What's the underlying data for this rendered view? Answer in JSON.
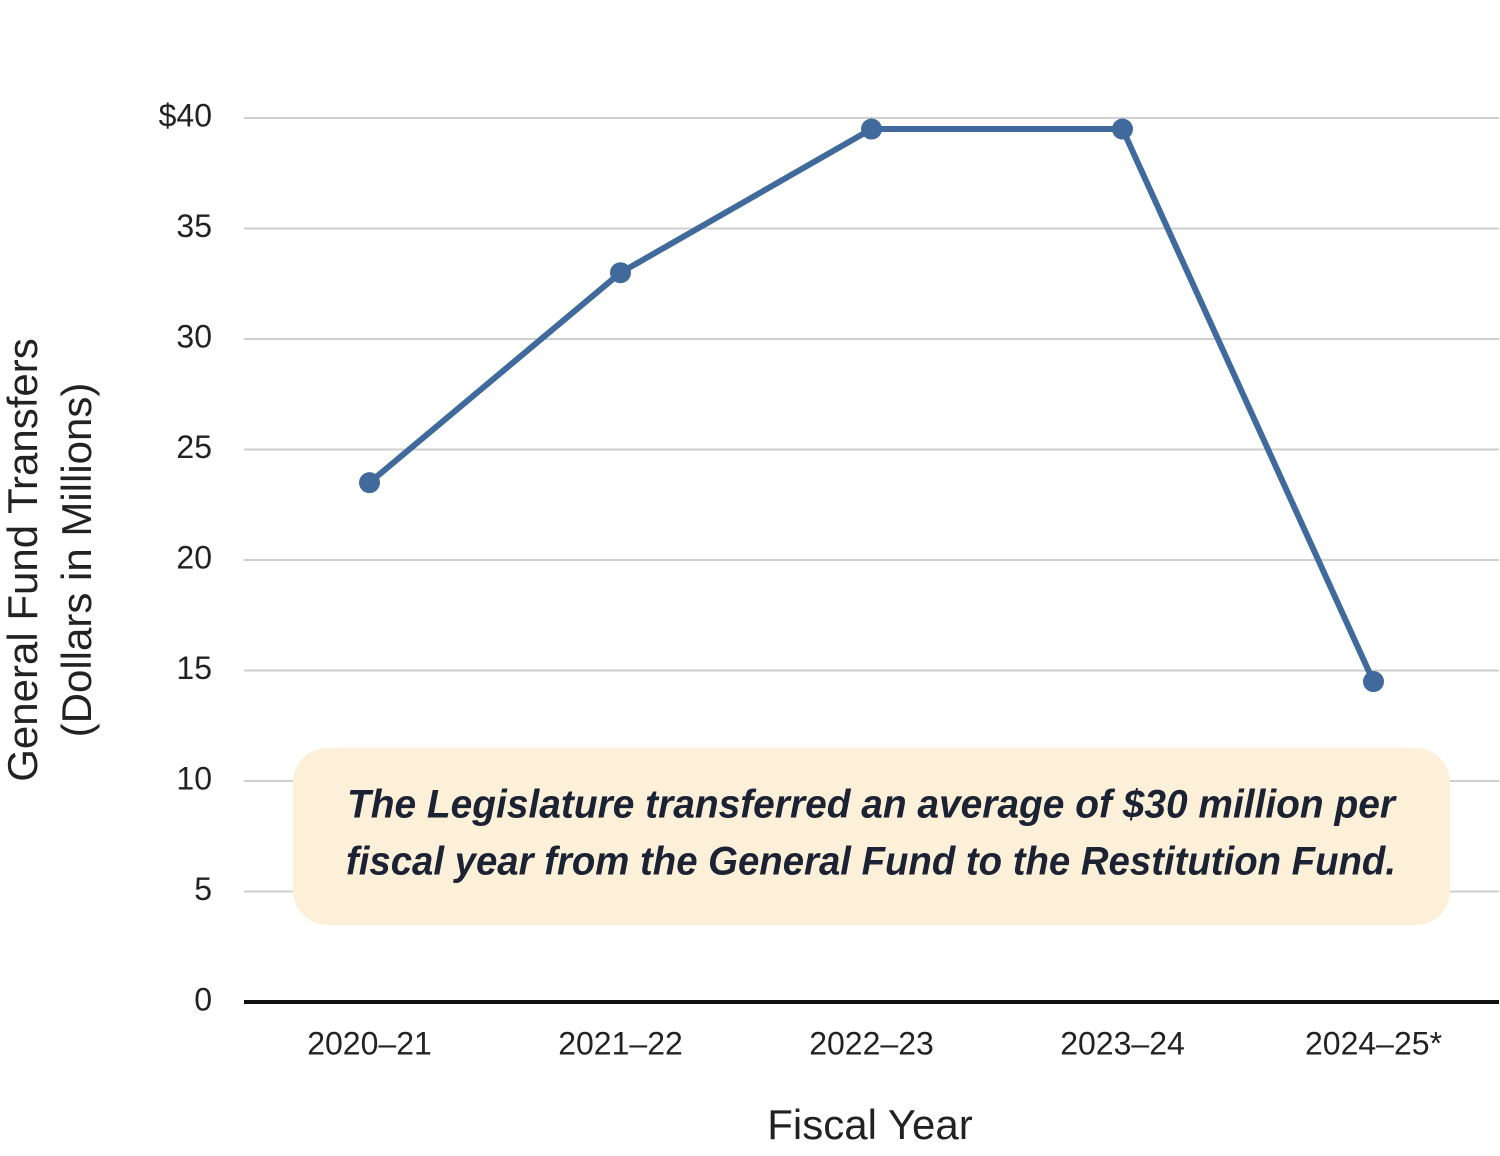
{
  "chart_data": {
    "type": "line",
    "ylabel": [
      "General Fund Transfers",
      "(Dollars in Millions)"
    ],
    "xlabel": "Fiscal Year",
    "categories": [
      "2020–21",
      "2021–22",
      "2022–23",
      "2023–24",
      "2024–25*"
    ],
    "series": [
      {
        "color": "#3f6a9b",
        "values": [
          23.5,
          33,
          39.5,
          39.5,
          14.5
        ]
      }
    ],
    "ylim": [
      0,
      40
    ],
    "yticks": [
      0,
      5,
      10,
      15,
      20,
      25,
      30,
      35,
      {
        "value": 40,
        "label": "$40"
      }
    ],
    "grid": true,
    "annotation": [
      "The Legislature transferred an average of $30 million per",
      "fiscal year from the General Fund to the Restitution Fund."
    ]
  }
}
